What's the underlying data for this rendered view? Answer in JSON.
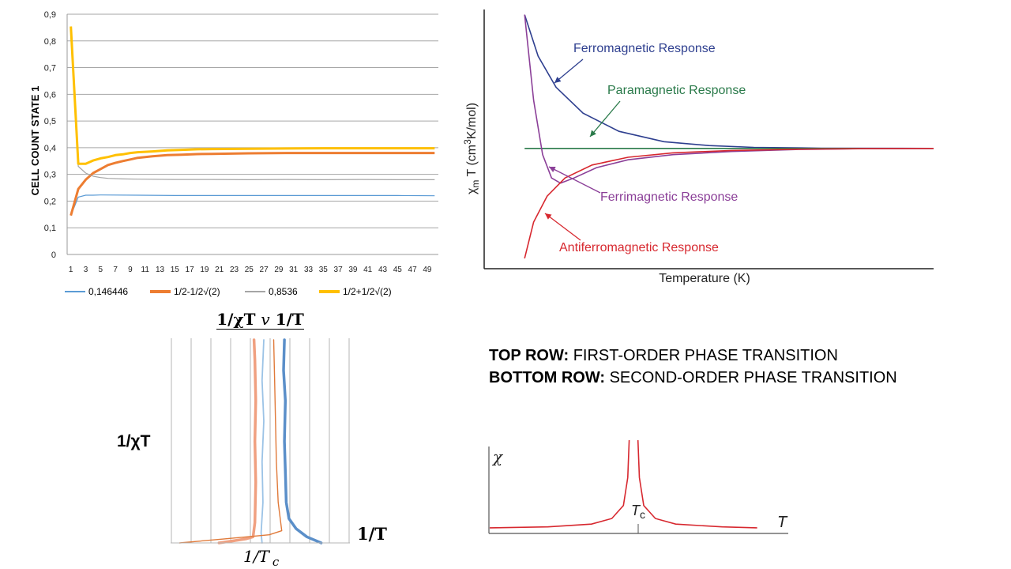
{
  "captions": {
    "top_row_label": "TOP ROW:",
    "top_row_text": "FIRST-ORDER PHASE TRANSITION",
    "bottom_row_label": "BOTTOM ROW:",
    "bottom_row_text": "SECOND-ORDER PHASE TRANSITION"
  },
  "chart_data": [
    {
      "type": "line",
      "title": "",
      "xlabel": "",
      "ylabel": "CELL COUNT STATE 1",
      "ylim": [
        0,
        0.9
      ],
      "xlim": [
        1,
        50
      ],
      "y_ticks": [
        "0",
        "0,1",
        "0,2",
        "0,3",
        "0,4",
        "0,5",
        "0,6",
        "0,7",
        "0,8",
        "0,9"
      ],
      "x_ticks": [
        "1",
        "3",
        "5",
        "7",
        "9",
        "11",
        "13",
        "15",
        "17",
        "19",
        "21",
        "23",
        "25",
        "27",
        "29",
        "31",
        "33",
        "35",
        "37",
        "39",
        "41",
        "43",
        "45",
        "47",
        "49"
      ],
      "grid": "horizontal",
      "legend": "bottom",
      "series": [
        {
          "name": "0,146446",
          "color": "#5b9bd5",
          "width": 1.2,
          "points": [
            [
              1,
              0.146
            ],
            [
              2,
              0.215
            ],
            [
              3,
              0.222
            ],
            [
              4,
              0.222
            ],
            [
              5,
              0.223
            ],
            [
              10,
              0.222
            ],
            [
              15,
              0.221
            ],
            [
              20,
              0.221
            ],
            [
              25,
              0.221
            ],
            [
              30,
              0.221
            ],
            [
              35,
              0.221
            ],
            [
              40,
              0.221
            ],
            [
              45,
              0.221
            ],
            [
              50,
              0.22
            ]
          ]
        },
        {
          "name": "1/2-1/2√(2)",
          "color": "#ed7d31",
          "width": 3,
          "points": [
            [
              1,
              0.146
            ],
            [
              2,
              0.245
            ],
            [
              3,
              0.28
            ],
            [
              4,
              0.305
            ],
            [
              5,
              0.32
            ],
            [
              6,
              0.335
            ],
            [
              7,
              0.343
            ],
            [
              8,
              0.35
            ],
            [
              9,
              0.356
            ],
            [
              10,
              0.362
            ],
            [
              12,
              0.368
            ],
            [
              14,
              0.372
            ],
            [
              16,
              0.374
            ],
            [
              18,
              0.376
            ],
            [
              20,
              0.377
            ],
            [
              25,
              0.379
            ],
            [
              30,
              0.38
            ],
            [
              35,
              0.38
            ],
            [
              40,
              0.38
            ],
            [
              45,
              0.38
            ],
            [
              50,
              0.38
            ]
          ]
        },
        {
          "name": "0,8536",
          "color": "#a5a5a5",
          "width": 1.2,
          "points": [
            [
              1,
              0.854
            ],
            [
              2,
              0.33
            ],
            [
              3,
              0.305
            ],
            [
              4,
              0.293
            ],
            [
              5,
              0.288
            ],
            [
              6,
              0.285
            ],
            [
              8,
              0.283
            ],
            [
              10,
              0.282
            ],
            [
              15,
              0.281
            ],
            [
              20,
              0.281
            ],
            [
              25,
              0.28
            ],
            [
              30,
              0.281
            ],
            [
              35,
              0.28
            ],
            [
              40,
              0.281
            ],
            [
              45,
              0.28
            ],
            [
              50,
              0.28
            ]
          ]
        },
        {
          "name": "1/2+1/2√(2)",
          "color": "#ffc000",
          "width": 3,
          "points": [
            [
              1,
              0.854
            ],
            [
              2,
              0.34
            ],
            [
              3,
              0.34
            ],
            [
              4,
              0.352
            ],
            [
              5,
              0.36
            ],
            [
              6,
              0.365
            ],
            [
              7,
              0.372
            ],
            [
              8,
              0.375
            ],
            [
              9,
              0.38
            ],
            [
              10,
              0.383
            ],
            [
              12,
              0.386
            ],
            [
              14,
              0.39
            ],
            [
              16,
              0.392
            ],
            [
              18,
              0.394
            ],
            [
              20,
              0.395
            ],
            [
              25,
              0.396
            ],
            [
              30,
              0.397
            ],
            [
              35,
              0.398
            ],
            [
              40,
              0.398
            ],
            [
              45,
              0.398
            ],
            [
              50,
              0.398
            ]
          ]
        }
      ]
    },
    {
      "type": "line",
      "title": "",
      "xlabel": "Temperature (K)",
      "ylabel": "χmT (cm3K/mol)",
      "ylabel_parts": {
        "chi": "χ",
        "sub_m": "m",
        "T": " T (cm",
        "sup_3": "3",
        "rest": "K/mol)"
      },
      "ylim": [
        0,
        1
      ],
      "xlim": [
        0,
        1
      ],
      "annotations": [
        {
          "text": "Ferromagnetic Response",
          "color": "#2e3f8f"
        },
        {
          "text": "Paramagnetic Response",
          "color": "#2a7a4a"
        },
        {
          "text": "Ferrimagnetic Response",
          "color": "#8b3f98"
        },
        {
          "text": "Antiferromagnetic Response",
          "color": "#d7282f"
        }
      ],
      "series": [
        {
          "name": "Ferromagnetic Response",
          "color": "#2e3f8f",
          "points": [
            [
              0.09,
              0.98
            ],
            [
              0.12,
              0.82
            ],
            [
              0.16,
              0.7
            ],
            [
              0.22,
              0.6
            ],
            [
              0.3,
              0.53
            ],
            [
              0.4,
              0.49
            ],
            [
              0.5,
              0.475
            ],
            [
              0.6,
              0.468
            ],
            [
              0.75,
              0.465
            ],
            [
              1.0,
              0.464
            ]
          ]
        },
        {
          "name": "Paramagnetic Response",
          "color": "#2a7a4a",
          "points": [
            [
              0.09,
              0.464
            ],
            [
              1.0,
              0.464
            ]
          ]
        },
        {
          "name": "Ferrimagnetic Response",
          "color": "#8b3f98",
          "points": [
            [
              0.09,
              0.98
            ],
            [
              0.11,
              0.65
            ],
            [
              0.13,
              0.44
            ],
            [
              0.15,
              0.35
            ],
            [
              0.17,
              0.33
            ],
            [
              0.2,
              0.35
            ],
            [
              0.25,
              0.39
            ],
            [
              0.32,
              0.42
            ],
            [
              0.42,
              0.44
            ],
            [
              0.55,
              0.452
            ],
            [
              0.7,
              0.46
            ],
            [
              0.85,
              0.463
            ],
            [
              1.0,
              0.464
            ]
          ]
        },
        {
          "name": "Antiferromagnetic Response",
          "color": "#d7282f",
          "points": [
            [
              0.09,
              0.04
            ],
            [
              0.11,
              0.18
            ],
            [
              0.14,
              0.28
            ],
            [
              0.18,
              0.35
            ],
            [
              0.24,
              0.4
            ],
            [
              0.32,
              0.43
            ],
            [
              0.42,
              0.447
            ],
            [
              0.55,
              0.456
            ],
            [
              0.7,
              0.461
            ],
            [
              0.85,
              0.463
            ],
            [
              1.0,
              0.464
            ]
          ]
        }
      ]
    },
    {
      "type": "line",
      "title": "1/χT v 1/T",
      "title_parts": {
        "left": "1/χT ",
        "v": "v",
        "right": " 1/T"
      },
      "xlabel": "1/T",
      "ylabel": "1/χT",
      "marker_label": "1/T",
      "marker_sub": "c",
      "xlim": [
        0,
        1
      ],
      "ylim": [
        0,
        1
      ],
      "grid": "vertical",
      "series": [
        {
          "name": "",
          "color": "#f0a080",
          "width": 3.5,
          "points": [
            [
              0.27,
              0.0
            ],
            [
              0.35,
              0.01
            ],
            [
              0.42,
              0.02
            ],
            [
              0.46,
              0.03
            ],
            [
              0.47,
              0.1
            ],
            [
              0.475,
              0.3
            ],
            [
              0.47,
              0.5
            ],
            [
              0.475,
              0.7
            ],
            [
              0.47,
              0.9
            ],
            [
              0.465,
              1.0
            ]
          ]
        },
        {
          "name": "",
          "color": "#9cc3e6",
          "width": 1.8,
          "points": [
            [
              0.51,
              0.0
            ],
            [
              0.505,
              0.05
            ],
            [
              0.515,
              0.2
            ],
            [
              0.51,
              0.4
            ],
            [
              0.52,
              0.6
            ],
            [
              0.51,
              0.8
            ],
            [
              0.52,
              1.0
            ]
          ]
        },
        {
          "name": "",
          "color": "#e07a3a",
          "width": 1.4,
          "points": [
            [
              0.05,
              0.0
            ],
            [
              0.3,
              0.02
            ],
            [
              0.55,
              0.04
            ],
            [
              0.62,
              0.06
            ],
            [
              0.6,
              0.2
            ],
            [
              0.59,
              0.4
            ],
            [
              0.585,
              0.6
            ],
            [
              0.58,
              0.8
            ],
            [
              0.575,
              1.0
            ]
          ]
        },
        {
          "name": "",
          "color": "#5b8fc9",
          "width": 3.5,
          "points": [
            [
              0.84,
              0.0
            ],
            [
              0.76,
              0.03
            ],
            [
              0.7,
              0.07
            ],
            [
              0.66,
              0.12
            ],
            [
              0.645,
              0.2
            ],
            [
              0.64,
              0.35
            ],
            [
              0.635,
              0.5
            ],
            [
              0.64,
              0.7
            ],
            [
              0.63,
              0.85
            ],
            [
              0.635,
              1.0
            ]
          ]
        }
      ]
    },
    {
      "type": "line",
      "title": "",
      "xlabel": "T",
      "ylabel": "χ",
      "marker_label": "T",
      "marker_sub": "c",
      "xlim": [
        0,
        1
      ],
      "ylim": [
        0,
        1
      ],
      "series": [
        {
          "name": "",
          "color": "#d7282f",
          "points": [
            [
              0.0,
              0.06
            ],
            [
              0.2,
              0.07
            ],
            [
              0.35,
              0.1
            ],
            [
              0.42,
              0.16
            ],
            [
              0.46,
              0.3
            ],
            [
              0.475,
              0.6
            ],
            [
              0.48,
              1.0
            ]
          ]
        },
        {
          "name": "",
          "color": "#d7282f",
          "points": [
            [
              0.51,
              1.0
            ],
            [
              0.515,
              0.6
            ],
            [
              0.53,
              0.3
            ],
            [
              0.57,
              0.16
            ],
            [
              0.64,
              0.1
            ],
            [
              0.8,
              0.07
            ],
            [
              0.92,
              0.06
            ]
          ]
        }
      ]
    }
  ]
}
